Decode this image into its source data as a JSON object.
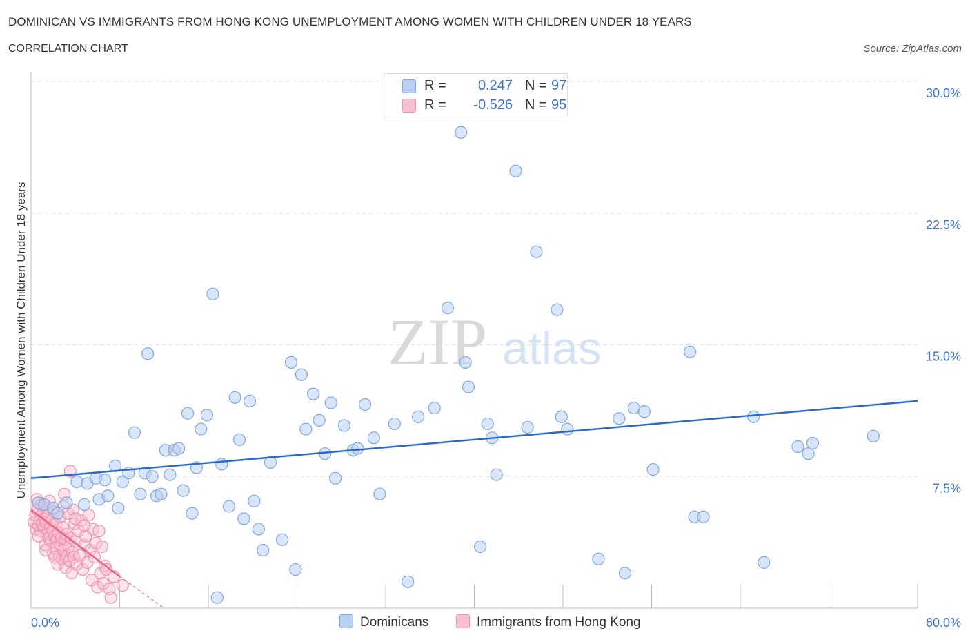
{
  "title": "DOMINICAN VS IMMIGRANTS FROM HONG KONG UNEMPLOYMENT AMONG WOMEN WITH CHILDREN UNDER 18 YEARS",
  "subtitle": "CORRELATION CHART",
  "source": "Source: ZipAtlas.com",
  "watermark": {
    "zip": "ZIP",
    "atlas": "atlas"
  },
  "legend": {
    "rows": [
      {
        "r_label": "R =",
        "r_value": "0.247",
        "n_label": "N =",
        "n_value": "97"
      },
      {
        "r_label": "R =",
        "r_value": "-0.526",
        "n_label": "N =",
        "n_value": "95"
      }
    ]
  },
  "bottom_legend": [
    "Dominicans",
    "Immigrants from Hong Kong"
  ],
  "colors": {
    "blue_fill": "#b9d0f2",
    "blue_stroke": "#7ea6e0",
    "blue_line": "#2c6cc9",
    "pink_fill": "#f8bfd0",
    "pink_stroke": "#ee8fab",
    "pink_line": "#e8628a",
    "axis_label": "#3a72c8",
    "grid": "#dddddd"
  },
  "chart_data": {
    "type": "scatter",
    "title": "DOMINICAN VS IMMIGRANTS FROM HONG KONG UNEMPLOYMENT AMONG WOMEN WITH CHILDREN UNDER 18 YEARS",
    "xlabel": "",
    "ylabel": "Unemployment Among Women with Children Under 18 years",
    "xlim": [
      0,
      60
    ],
    "ylim": [
      0,
      30
    ],
    "x_tick_labels": [
      "0.0%",
      "60.0%"
    ],
    "y_ticks": [
      7.5,
      15,
      22.5,
      30
    ],
    "y_tick_labels": [
      "7.5%",
      "15.0%",
      "22.5%",
      "30.0%"
    ],
    "grid": true,
    "series": [
      {
        "name": "Dominicans",
        "r": 0.247,
        "n": 97,
        "trend": {
          "x": [
            0,
            60
          ],
          "y": [
            7.4,
            11.8
          ]
        },
        "points": [
          [
            0.5,
            6.0
          ],
          [
            0.9,
            5.9
          ],
          [
            1.5,
            5.7
          ],
          [
            1.8,
            5.4
          ],
          [
            2.4,
            6.0
          ],
          [
            3.1,
            7.2
          ],
          [
            3.6,
            5.9
          ],
          [
            3.8,
            7.1
          ],
          [
            4.4,
            7.4
          ],
          [
            4.6,
            6.2
          ],
          [
            5.0,
            7.3
          ],
          [
            5.2,
            6.4
          ],
          [
            5.7,
            8.1
          ],
          [
            5.9,
            5.7
          ],
          [
            6.2,
            7.2
          ],
          [
            6.6,
            7.7
          ],
          [
            7.0,
            10.0
          ],
          [
            7.4,
            6.5
          ],
          [
            7.7,
            7.7
          ],
          [
            7.9,
            14.5
          ],
          [
            8.2,
            7.5
          ],
          [
            8.5,
            6.4
          ],
          [
            8.8,
            6.5
          ],
          [
            9.1,
            9.0
          ],
          [
            9.4,
            7.6
          ],
          [
            9.7,
            9.0
          ],
          [
            10.0,
            9.1
          ],
          [
            10.3,
            6.7
          ],
          [
            10.6,
            11.1
          ],
          [
            10.9,
            5.4
          ],
          [
            11.2,
            8.0
          ],
          [
            11.5,
            10.2
          ],
          [
            11.9,
            11.0
          ],
          [
            12.3,
            17.9
          ],
          [
            12.6,
            0.6
          ],
          [
            12.9,
            8.2
          ],
          [
            13.4,
            5.8
          ],
          [
            13.8,
            12.0
          ],
          [
            14.1,
            9.6
          ],
          [
            14.4,
            5.1
          ],
          [
            14.8,
            11.8
          ],
          [
            15.1,
            6.1
          ],
          [
            15.4,
            4.5
          ],
          [
            15.7,
            3.3
          ],
          [
            16.2,
            8.3
          ],
          [
            17.0,
            3.9
          ],
          [
            17.6,
            14.0
          ],
          [
            17.9,
            2.2
          ],
          [
            18.3,
            13.3
          ],
          [
            18.6,
            10.2
          ],
          [
            19.1,
            12.2
          ],
          [
            19.5,
            10.7
          ],
          [
            19.9,
            8.8
          ],
          [
            20.3,
            11.7
          ],
          [
            20.6,
            7.4
          ],
          [
            21.2,
            10.4
          ],
          [
            21.8,
            9.0
          ],
          [
            22.1,
            9.1
          ],
          [
            22.6,
            11.6
          ],
          [
            23.2,
            9.7
          ],
          [
            23.6,
            6.5
          ],
          [
            24.6,
            10.5
          ],
          [
            25.5,
            1.5
          ],
          [
            26.2,
            10.9
          ],
          [
            27.3,
            11.4
          ],
          [
            28.2,
            17.1
          ],
          [
            29.1,
            27.1
          ],
          [
            29.4,
            14.0
          ],
          [
            29.6,
            12.6
          ],
          [
            30.4,
            3.5
          ],
          [
            30.9,
            10.5
          ],
          [
            31.2,
            9.7
          ],
          [
            31.5,
            7.6
          ],
          [
            32.8,
            24.9
          ],
          [
            33.6,
            10.3
          ],
          [
            34.2,
            20.3
          ],
          [
            35.6,
            17.0
          ],
          [
            35.9,
            10.9
          ],
          [
            36.3,
            10.2
          ],
          [
            38.4,
            2.8
          ],
          [
            39.8,
            10.8
          ],
          [
            40.2,
            2.0
          ],
          [
            40.8,
            11.4
          ],
          [
            41.5,
            11.2
          ],
          [
            42.1,
            7.9
          ],
          [
            44.6,
            14.6
          ],
          [
            44.9,
            5.2
          ],
          [
            45.5,
            5.2
          ],
          [
            48.9,
            10.9
          ],
          [
            49.6,
            2.6
          ],
          [
            51.9,
            9.2
          ],
          [
            52.6,
            8.8
          ],
          [
            52.9,
            9.4
          ],
          [
            57.0,
            9.8
          ]
        ]
      },
      {
        "name": "Immigrants from Hong Kong",
        "r": -0.526,
        "n": 95,
        "trend": {
          "x": [
            0,
            6
          ],
          "y": [
            5.6,
            1.8
          ]
        },
        "trend_dashed": {
          "x": [
            6,
            9
          ],
          "y": [
            1.8,
            0
          ]
        },
        "points": [
          [
            0.2,
            4.9
          ],
          [
            0.3,
            5.3
          ],
          [
            0.35,
            4.5
          ],
          [
            0.4,
            6.2
          ],
          [
            0.45,
            5.6
          ],
          [
            0.5,
            4.7
          ],
          [
            0.6,
            5.0
          ],
          [
            0.65,
            4.4
          ],
          [
            0.7,
            5.9
          ],
          [
            0.75,
            4.8
          ],
          [
            0.8,
            5.4
          ],
          [
            0.85,
            4.6
          ],
          [
            0.9,
            5.1
          ],
          [
            0.95,
            3.6
          ],
          [
            1.0,
            4.9
          ],
          [
            1.05,
            5.7
          ],
          [
            1.1,
            4.2
          ],
          [
            1.15,
            5.3
          ],
          [
            1.2,
            4.0
          ],
          [
            1.25,
            6.1
          ],
          [
            1.3,
            4.6
          ],
          [
            1.35,
            3.8
          ],
          [
            1.4,
            5.0
          ],
          [
            1.45,
            4.4
          ],
          [
            1.5,
            3.1
          ],
          [
            1.55,
            5.5
          ],
          [
            1.6,
            4.1
          ],
          [
            1.65,
            3.4
          ],
          [
            1.7,
            4.8
          ],
          [
            1.75,
            3.9
          ],
          [
            1.8,
            2.5
          ],
          [
            1.85,
            4.3
          ],
          [
            1.9,
            3.0
          ],
          [
            1.95,
            5.2
          ],
          [
            2.0,
            3.6
          ],
          [
            2.05,
            4.0
          ],
          [
            2.1,
            2.8
          ],
          [
            2.15,
            4.6
          ],
          [
            2.2,
            3.3
          ],
          [
            2.25,
            6.5
          ],
          [
            2.3,
            3.9
          ],
          [
            2.35,
            2.3
          ],
          [
            2.4,
            4.2
          ],
          [
            2.45,
            3.0
          ],
          [
            2.5,
            5.4
          ],
          [
            2.55,
            3.5
          ],
          [
            2.6,
            2.7
          ],
          [
            2.65,
            7.8
          ],
          [
            2.7,
            4.0
          ],
          [
            2.75,
            2.0
          ],
          [
            2.8,
            3.2
          ],
          [
            2.85,
            5.6
          ],
          [
            2.9,
            2.9
          ],
          [
            2.95,
            4.8
          ],
          [
            3.0,
            3.8
          ],
          [
            3.1,
            2.5
          ],
          [
            3.2,
            4.4
          ],
          [
            3.3,
            3.0
          ],
          [
            3.4,
            5.0
          ],
          [
            3.5,
            2.2
          ],
          [
            3.6,
            3.6
          ],
          [
            3.7,
            4.1
          ],
          [
            3.8,
            2.6
          ],
          [
            3.9,
            5.3
          ],
          [
            4.0,
            3.3
          ],
          [
            4.1,
            1.6
          ],
          [
            4.2,
            4.5
          ],
          [
            4.3,
            2.9
          ],
          [
            4.4,
            3.7
          ],
          [
            4.5,
            1.2
          ],
          [
            4.6,
            4.4
          ],
          [
            4.7,
            2.0
          ],
          [
            4.8,
            3.5
          ],
          [
            4.9,
            1.4
          ],
          [
            5.0,
            2.4
          ],
          [
            5.1,
            2.2
          ],
          [
            5.3,
            1.1
          ],
          [
            5.4,
            0.6
          ],
          [
            5.6,
            1.8
          ],
          [
            6.2,
            1.3
          ],
          [
            0.5,
            4.1
          ],
          [
            1.0,
            3.3
          ],
          [
            1.6,
            2.9
          ],
          [
            2.2,
            5.8
          ],
          [
            3.0,
            5.1
          ],
          [
            3.6,
            4.7
          ]
        ]
      }
    ]
  }
}
